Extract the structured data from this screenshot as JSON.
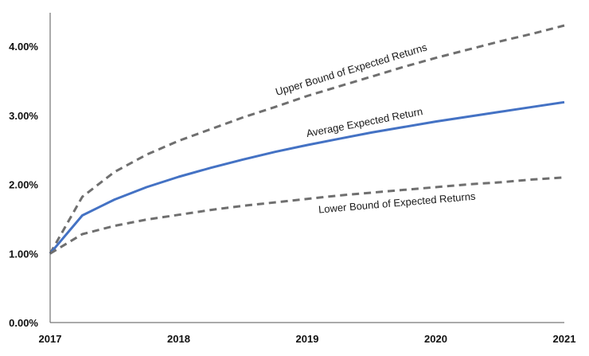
{
  "chart_data": {
    "type": "line",
    "title": "",
    "xlabel": "",
    "ylabel": "",
    "x_ticks": [
      "2017",
      "2018",
      "2019",
      "2020",
      "2021"
    ],
    "y_ticks": [
      "0.00%",
      "1.00%",
      "2.00%",
      "3.00%",
      "4.00%"
    ],
    "xlim": [
      2017,
      2021
    ],
    "ylim": [
      0,
      0.045
    ],
    "grid": false,
    "legend": "none",
    "series": [
      {
        "style": "dashed",
        "color": "#6f6f6f",
        "annotation": "Upper Bound of Expected Returns",
        "x": [
          2017.0,
          2017.25,
          2017.5,
          2017.75,
          2018.0,
          2018.25,
          2018.5,
          2018.75,
          2019.0,
          2019.25,
          2019.5,
          2019.75,
          2020.0,
          2020.25,
          2020.5,
          2020.75,
          2021.0
        ],
        "values": [
          0.01,
          0.0182,
          0.0218,
          0.0243,
          0.0263,
          0.028,
          0.0297,
          0.0312,
          0.0328,
          0.0342,
          0.0356,
          0.037,
          0.0383,
          0.0395,
          0.0407,
          0.0418,
          0.043
        ]
      },
      {
        "style": "solid",
        "color": "#4472c4",
        "annotation": "Average Expected Return",
        "x": [
          2017.0,
          2017.25,
          2017.5,
          2017.75,
          2018.0,
          2018.25,
          2018.5,
          2018.75,
          2019.0,
          2019.25,
          2019.5,
          2019.75,
          2020.0,
          2020.25,
          2020.5,
          2020.75,
          2021.0
        ],
        "values": [
          0.01,
          0.0155,
          0.0178,
          0.0196,
          0.0211,
          0.0224,
          0.0236,
          0.0247,
          0.0257,
          0.0266,
          0.0275,
          0.0283,
          0.0291,
          0.0298,
          0.0305,
          0.0312,
          0.0319
        ]
      },
      {
        "style": "dashed",
        "color": "#6f6f6f",
        "annotation": "Lower Bound of Expected Returns",
        "x": [
          2017.0,
          2017.25,
          2017.5,
          2017.75,
          2018.0,
          2018.25,
          2018.5,
          2018.75,
          2019.0,
          2019.25,
          2019.5,
          2019.75,
          2020.0,
          2020.25,
          2020.5,
          2020.75,
          2021.0
        ],
        "values": [
          0.01,
          0.0128,
          0.014,
          0.0149,
          0.0156,
          0.0163,
          0.0169,
          0.0174,
          0.0179,
          0.0184,
          0.0188,
          0.0192,
          0.0196,
          0.02,
          0.0203,
          0.0207,
          0.021
        ]
      }
    ]
  }
}
